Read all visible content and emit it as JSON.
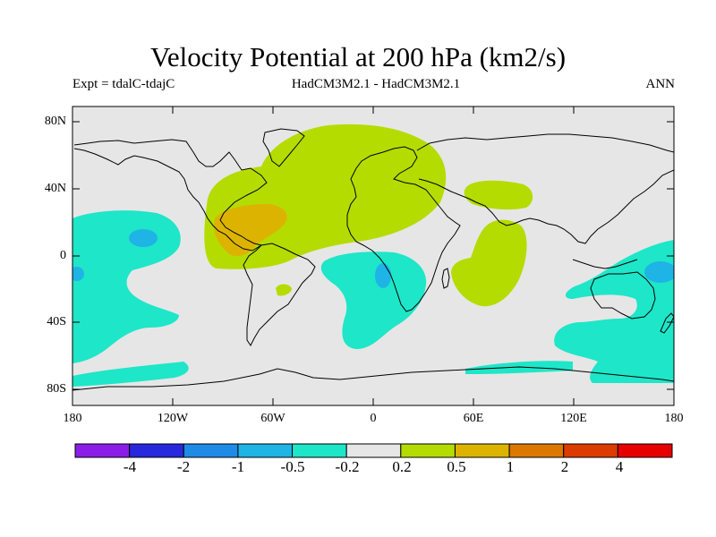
{
  "title": "Velocity Potential at 200 hPa (km2/s)",
  "subtitle": {
    "left": "Expt = tdalC-tdajC",
    "center": "HadCM3M2.1 - HadCM3M2.1",
    "right": "ANN"
  },
  "map": {
    "lat_labels": [
      "80N",
      "40N",
      "0",
      "40S",
      "80S"
    ],
    "lon_labels": [
      "180",
      "120W",
      "60W",
      "0",
      "60E",
      "120E",
      "180"
    ],
    "background_color": "#e6e6e6"
  },
  "colorbar": {
    "colors": [
      "#8a1ee6",
      "#2828dc",
      "#1e8ce6",
      "#1eb4e6",
      "#1ee6c8",
      "#e6e6e6",
      "#b4dc00",
      "#dcb400",
      "#dc7800",
      "#dc3c00",
      "#e60000"
    ],
    "labels": [
      "-4",
      "-2",
      "-1",
      "-0.5",
      "-0.2",
      "0.2",
      "0.5",
      "1",
      "2",
      "4"
    ]
  }
}
